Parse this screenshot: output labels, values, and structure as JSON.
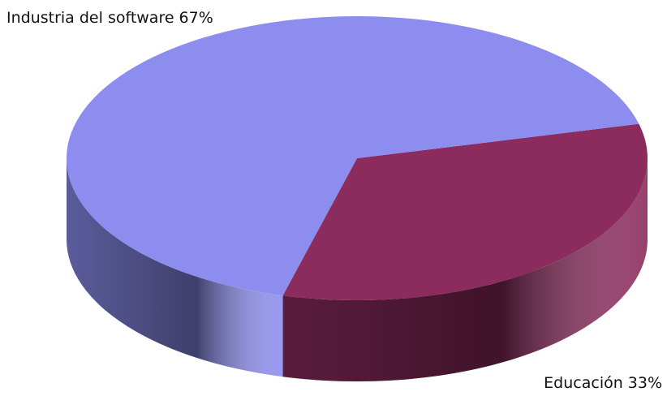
{
  "chart_data": {
    "type": "pie3d",
    "categories": [
      "Industria del software",
      "Educación"
    ],
    "values": [
      67,
      33
    ],
    "value_labels": [
      "67%",
      "33%"
    ],
    "colors": [
      "#8c8def",
      "#8c2b5d"
    ]
  }
}
